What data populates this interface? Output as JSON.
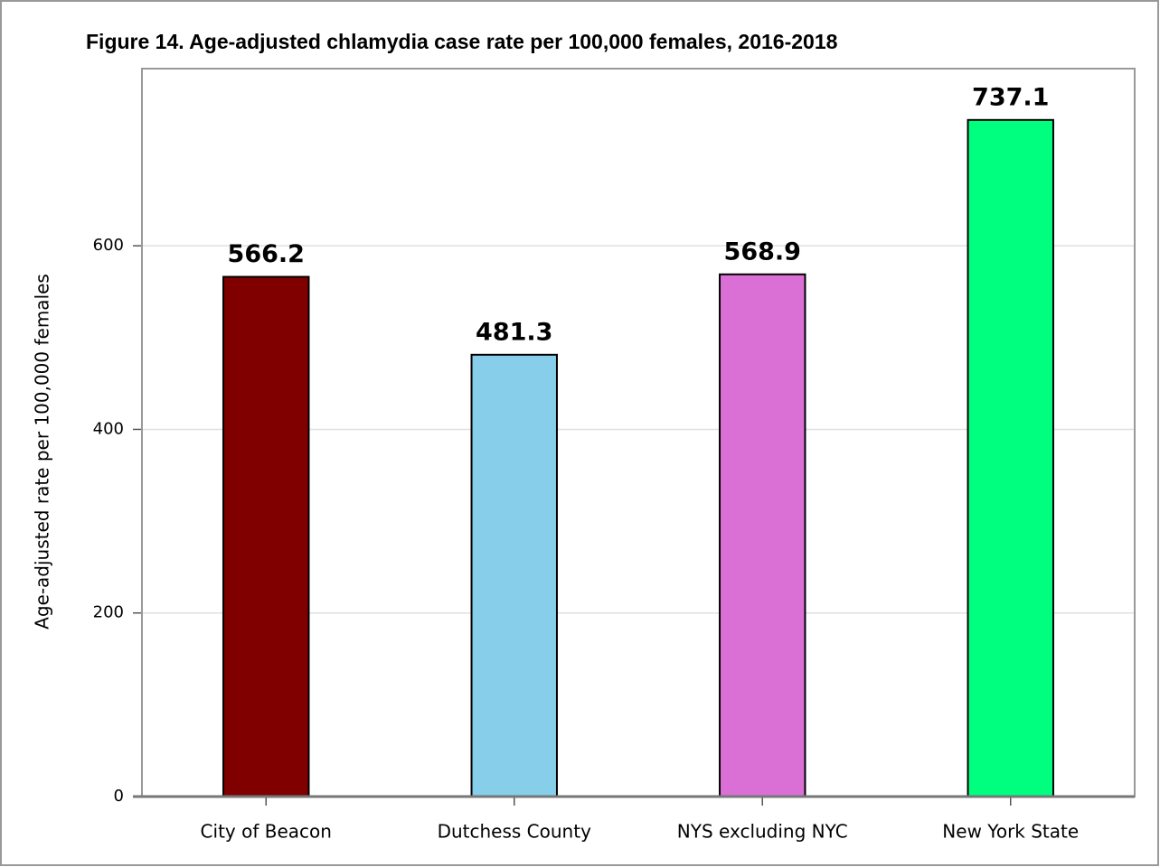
{
  "chart_data": {
    "type": "bar",
    "title": "Figure 14. Age-adjusted chlamydia case rate per 100,000 females, 2016-2018",
    "y_label": "Age-adjusted rate per 100,000 females",
    "categories": [
      "City of Beacon",
      "Dutchess County",
      "NYS excluding NYC",
      "New York State"
    ],
    "values": [
      566.2,
      481.3,
      568.9,
      737.1
    ],
    "colors": [
      "#800000",
      "#87ceeb",
      "#da70d6",
      "#00ff7f"
    ],
    "ylim": [
      0,
      793
    ],
    "yticks": [
      0,
      200,
      400,
      600
    ],
    "grid": true
  }
}
